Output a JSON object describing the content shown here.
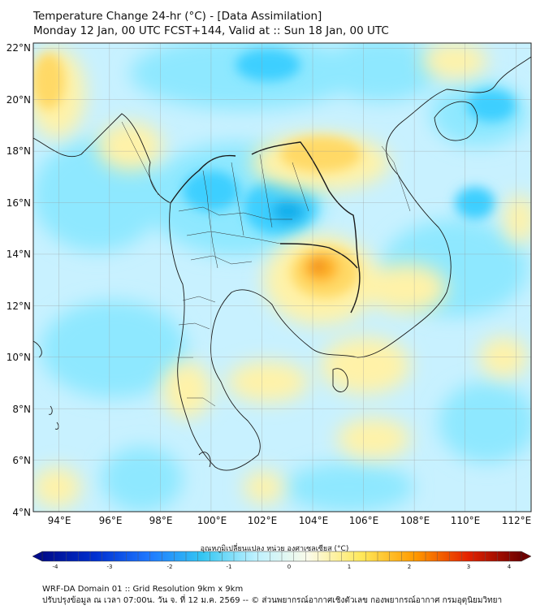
{
  "header": {
    "line1": "Temperature Change 24-hr (°C) - [Data Assimilation]",
    "line2": "Monday 12 Jan, 00 UTC FCST+144, Valid at :: Sun 18 Jan, 00 UTC"
  },
  "map": {
    "lon_range": [
      93.0,
      112.6
    ],
    "lat_range": [
      4.0,
      22.2
    ],
    "lat_ticks": [
      "22°N",
      "20°N",
      "18°N",
      "16°N",
      "14°N",
      "12°N",
      "10°N",
      "8°N",
      "6°N",
      "4°N"
    ],
    "lon_ticks": [
      "94°E",
      "96°E",
      "98°E",
      "100°E",
      "102°E",
      "104°E",
      "106°E",
      "108°E",
      "110°E",
      "112°E"
    ],
    "background": "#c8f1ff",
    "warm_colors": [
      "#fff2a8",
      "#ffd966",
      "#ffb428",
      "#f08c28"
    ],
    "cool_colors": [
      "#8ee8ff",
      "#3ccfff",
      "#14b0ec"
    ]
  },
  "colorbar": {
    "label": "อุณหภูมิเปลี่ยนแปลง หน่วย องศาเซลเซียส (°C)",
    "ticks": [
      "-4",
      "-3",
      "-2",
      "-1",
      "0",
      "1",
      "2",
      "3",
      "4"
    ],
    "range": [
      -4,
      4
    ],
    "colors": [
      "#000c8a",
      "#0030d0",
      "#1e78ff",
      "#33c6f2",
      "#bdf1ff",
      "#fbfbe9",
      "#ffe85a",
      "#ff9a00",
      "#e42200",
      "#6e0000"
    ]
  },
  "footer": {
    "line1": "WRF-DA Domain 01 :: Grid Resolution 9km x 9km",
    "line2": "ปรับปรุงข้อมูล ณ เวลา 07:00น. วัน จ. ที่ 12 ม.ค. 2569 -- © ส่วนพยากรณ์อากาศเชิงตัวเลข กองพยากรณ์อากาศ กรมอุตุนิยมวิทยา"
  }
}
